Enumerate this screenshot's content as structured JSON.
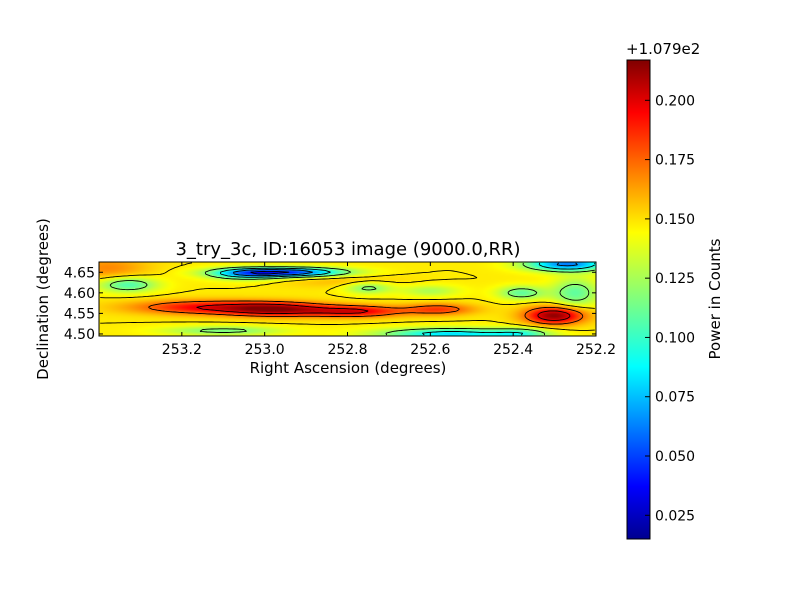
{
  "chart_data": {
    "type": "heatmap",
    "title": "3_try_3c, ID:16053 image (9000.0,RR)",
    "xlabel": "Right Ascension (degrees)",
    "ylabel": "Declination (degrees)",
    "xlim": [
      253.4,
      252.2
    ],
    "ylim": [
      4.495,
      4.675
    ],
    "x_reversed": true,
    "xticks": [
      {
        "value": 253.2,
        "label": "253.2"
      },
      {
        "value": 253.0,
        "label": "253.0"
      },
      {
        "value": 252.8,
        "label": "252.8"
      },
      {
        "value": 252.6,
        "label": "252.6"
      },
      {
        "value": 252.4,
        "label": "252.4"
      },
      {
        "value": 252.2,
        "label": "252.2"
      }
    ],
    "yticks": [
      {
        "value": 4.5,
        "label": "4.50"
      },
      {
        "value": 4.55,
        "label": "4.55"
      },
      {
        "value": 4.6,
        "label": "4.60"
      },
      {
        "value": 4.65,
        "label": "4.65"
      }
    ],
    "colormap": "jet",
    "contours": true,
    "colorbar": {
      "label": "Power in Counts",
      "offset_text": "+1.079e2",
      "range": [
        0.015,
        0.217
      ],
      "ticks": [
        {
          "value": 0.025,
          "label": "0.025"
        },
        {
          "value": 0.05,
          "label": "0.050"
        },
        {
          "value": 0.075,
          "label": "0.075"
        },
        {
          "value": 0.1,
          "label": "0.100"
        },
        {
          "value": 0.125,
          "label": "0.125"
        },
        {
          "value": 0.15,
          "label": "0.150"
        },
        {
          "value": 0.175,
          "label": "0.175"
        },
        {
          "value": 0.2,
          "label": "0.200"
        }
      ]
    },
    "base_value": 0.145,
    "features": [
      {
        "ra": 253.15,
        "dec": 4.565,
        "sd_ra": 0.12,
        "sd_dec": 0.012,
        "amp": 0.045
      },
      {
        "ra": 252.97,
        "dec": 4.56,
        "sd_ra": 0.09,
        "sd_dec": 0.012,
        "amp": 0.06
      },
      {
        "ra": 252.78,
        "dec": 4.555,
        "sd_ra": 0.08,
        "sd_dec": 0.01,
        "amp": 0.05
      },
      {
        "ra": 252.58,
        "dec": 4.56,
        "sd_ra": 0.06,
        "sd_dec": 0.01,
        "amp": 0.035
      },
      {
        "ra": 252.3,
        "dec": 4.545,
        "sd_ra": 0.05,
        "sd_dec": 0.015,
        "amp": 0.07
      },
      {
        "ra": 253.33,
        "dec": 4.62,
        "sd_ra": 0.05,
        "sd_dec": 0.013,
        "amp": -0.04
      },
      {
        "ra": 253.05,
        "dec": 4.645,
        "sd_ra": 0.06,
        "sd_dec": 0.01,
        "amp": -0.04
      },
      {
        "ra": 252.95,
        "dec": 4.65,
        "sd_ra": 0.1,
        "sd_dec": 0.008,
        "amp": -0.095
      },
      {
        "ra": 252.75,
        "dec": 4.612,
        "sd_ra": 0.04,
        "sd_dec": 0.01,
        "amp": -0.03
      },
      {
        "ra": 252.6,
        "dec": 4.605,
        "sd_ra": 0.05,
        "sd_dec": 0.01,
        "amp": -0.02
      },
      {
        "ra": 252.38,
        "dec": 4.6,
        "sd_ra": 0.04,
        "sd_dec": 0.012,
        "amp": -0.035
      },
      {
        "ra": 252.27,
        "dec": 4.67,
        "sd_ra": 0.07,
        "sd_dec": 0.012,
        "amp": -0.08
      },
      {
        "ra": 252.25,
        "dec": 4.6,
        "sd_ra": 0.04,
        "sd_dec": 0.025,
        "amp": -0.035
      },
      {
        "ra": 253.1,
        "dec": 4.508,
        "sd_ra": 0.1,
        "sd_dec": 0.008,
        "amp": -0.03
      },
      {
        "ra": 252.55,
        "dec": 4.5,
        "sd_ra": 0.12,
        "sd_dec": 0.01,
        "amp": -0.06
      },
      {
        "ra": 252.38,
        "dec": 4.5,
        "sd_ra": 0.05,
        "sd_dec": 0.01,
        "amp": -0.03
      },
      {
        "ra": 253.38,
        "dec": 4.66,
        "sd_ra": 0.07,
        "sd_dec": 0.02,
        "amp": 0.02
      },
      {
        "ra": 252.82,
        "dec": 4.63,
        "sd_ra": 0.1,
        "sd_dec": 0.012,
        "amp": 0.01
      }
    ],
    "contour_levels": [
      0.045,
      0.07,
      0.095,
      0.12,
      0.145,
      0.17,
      0.195
    ]
  }
}
